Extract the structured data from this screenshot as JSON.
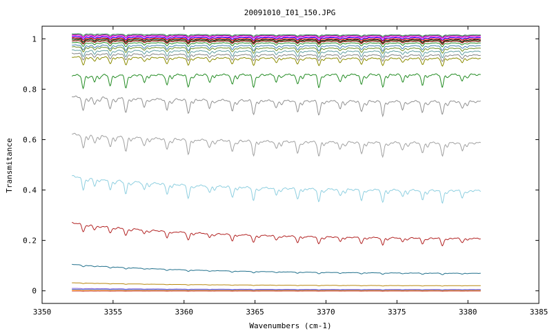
{
  "chart_data": {
    "type": "line",
    "title": "20091010_I01_150.JPG",
    "xlabel": "Wavenumbers (cm-1)",
    "ylabel": "Transmitance",
    "xlim": [
      3350,
      3385
    ],
    "ylim": [
      -0.05,
      1.05
    ],
    "xticks": [
      "3350",
      "3355",
      "3360",
      "3365",
      "3370",
      "3375",
      "3380",
      "3385"
    ],
    "yticks": [
      "0",
      "0.2",
      "0.4",
      "0.6",
      "0.8",
      "1"
    ],
    "x_range": [
      3352.1,
      3380.9
    ],
    "grid": false,
    "legend": "none",
    "series": [
      {
        "color": "#2e8b57",
        "start": 1.02,
        "end": 1.015,
        "depth": 0.006
      },
      {
        "color": "#800080",
        "start": 1.016,
        "end": 1.012,
        "depth": 0.008
      },
      {
        "color": "#ff00ff",
        "start": 1.012,
        "end": 1.008,
        "depth": 0.008
      },
      {
        "color": "#0000ff",
        "start": 1.008,
        "end": 1.004,
        "depth": 0.01
      },
      {
        "color": "#ff0000",
        "start": 1.004,
        "end": 1.0,
        "depth": 0.01
      },
      {
        "color": "#000000",
        "start": 1.0,
        "end": 0.996,
        "depth": 0.012
      },
      {
        "color": "#556b2f",
        "start": 0.996,
        "end": 0.993,
        "depth": 0.012
      },
      {
        "color": "#8b0000",
        "start": 0.992,
        "end": 0.99,
        "depth": 0.012
      },
      {
        "color": "#228b22",
        "start": 0.985,
        "end": 0.983,
        "depth": 0.015
      },
      {
        "color": "#4682b4",
        "start": 0.975,
        "end": 0.972,
        "depth": 0.02
      },
      {
        "color": "#6b8e23",
        "start": 0.968,
        "end": 0.962,
        "depth": 0.02
      },
      {
        "color": "#5f9ea0",
        "start": 0.955,
        "end": 0.95,
        "depth": 0.025
      },
      {
        "color": "#808080",
        "start": 0.942,
        "end": 0.935,
        "depth": 0.025
      },
      {
        "color": "#8b8b00",
        "start": 0.928,
        "end": 0.922,
        "depth": 0.03
      },
      {
        "color": "#228b22",
        "start": 0.855,
        "end": 0.858,
        "depth": 0.05
      },
      {
        "color": "#909090",
        "start": 0.77,
        "end": 0.75,
        "depth": 0.055
      },
      {
        "color": "#a0a0a0",
        "start": 0.622,
        "end": 0.585,
        "depth": 0.055
      },
      {
        "color": "#8ecfe0",
        "start": 0.455,
        "end": 0.395,
        "depth": 0.05
      },
      {
        "color": "#b22222",
        "start": 0.27,
        "end": 0.205,
        "depth": 0.03
      },
      {
        "color": "#1f6f8b",
        "start": 0.105,
        "end": 0.068,
        "depth": 0.006
      },
      {
        "color": "#b8860b",
        "start": 0.032,
        "end": 0.02,
        "depth": 0.002
      },
      {
        "color": "#9370db",
        "start": 0.01,
        "end": 0.005,
        "depth": 0.002
      },
      {
        "color": "#4169e1",
        "start": 0.006,
        "end": 0.003,
        "depth": 0.001
      },
      {
        "color": "#ff8c00",
        "start": 0.002,
        "end": 0.001,
        "depth": 0.001
      },
      {
        "color": "#cd5c5c",
        "start": -0.001,
        "end": -0.001,
        "depth": 0.001
      }
    ],
    "absorption_lines": [
      3352.9,
      3353.7,
      3354.8,
      3355.9,
      3357.2,
      3358.8,
      3360.3,
      3361.8,
      3363.4,
      3364.9,
      3366.5,
      3368.0,
      3369.5,
      3371.0,
      3372.5,
      3374.0,
      3375.4,
      3376.8,
      3378.2,
      3379.6
    ]
  }
}
